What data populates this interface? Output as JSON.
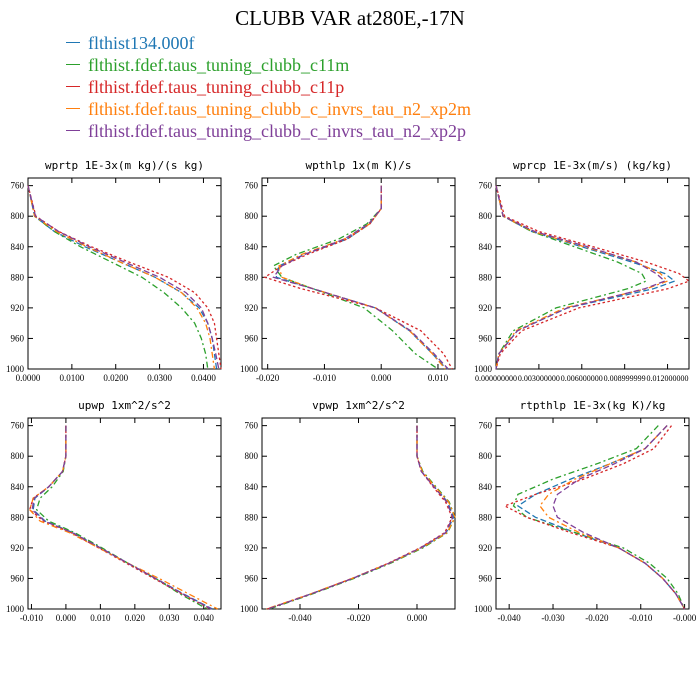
{
  "title": "CLUBB VAR at280E,-17N",
  "legend": [
    {
      "label": "flthist134.000f",
      "color": "#1f77b4"
    },
    {
      "label": "flthist.fdef.taus_tuning_clubb_c11m",
      "color": "#2ca02c"
    },
    {
      "label": "flthist.fdef.taus_tuning_clubb_c11p",
      "color": "#d62728"
    },
    {
      "label": "flthist.fdef.taus_tuning_clubb_c_invrs_tau_n2_xp2m",
      "color": "#ff7f0e"
    },
    {
      "label": "flthist.fdef.taus_tuning_clubb_c_invrs_tau_n2_xp2p",
      "color": "#7f3f98"
    }
  ],
  "chart_data": [
    {
      "type": "line",
      "title": "wprtp  1E-3x(m kg)/(s kg)",
      "xlim": [
        0,
        0.044
      ],
      "ylim": [
        750,
        1000
      ],
      "y_inverted": true,
      "xticks": [
        0,
        0.01,
        0.02,
        0.03,
        0.04
      ],
      "xtick_labels": [
        "0.0000",
        "0.0100",
        "0.0200",
        "0.0300",
        "0.0400"
      ],
      "yticks": [
        760,
        800,
        840,
        880,
        920,
        960,
        1000
      ],
      "series": [
        {
          "y": [
            760,
            800,
            820,
            840,
            860,
            880,
            900,
            920,
            940,
            960,
            980,
            1000
          ],
          "x": [
            0,
            0.0015,
            0.006,
            0.013,
            0.021,
            0.029,
            0.035,
            0.039,
            0.041,
            0.042,
            0.0425,
            0.043
          ]
        },
        {
          "y": [
            760,
            800,
            820,
            840,
            860,
            880,
            900,
            920,
            940,
            960,
            980,
            1000
          ],
          "x": [
            0,
            0.0015,
            0.006,
            0.012,
            0.019,
            0.026,
            0.031,
            0.035,
            0.038,
            0.0395,
            0.0405,
            0.041
          ]
        },
        {
          "y": [
            760,
            800,
            820,
            840,
            860,
            880,
            900,
            920,
            940,
            960,
            980,
            1000
          ],
          "x": [
            0,
            0.0018,
            0.007,
            0.0145,
            0.023,
            0.032,
            0.038,
            0.041,
            0.0425,
            0.043,
            0.0435,
            0.044
          ]
        },
        {
          "y": [
            760,
            800,
            820,
            840,
            860,
            880,
            900,
            920,
            940,
            960,
            980,
            1000
          ],
          "x": [
            0,
            0.0015,
            0.0065,
            0.0135,
            0.021,
            0.029,
            0.035,
            0.0385,
            0.0405,
            0.0415,
            0.042,
            0.0425
          ]
        },
        {
          "y": [
            760,
            800,
            820,
            840,
            860,
            880,
            900,
            920,
            940,
            960,
            980,
            1000
          ],
          "x": [
            0,
            0.0017,
            0.007,
            0.014,
            0.022,
            0.03,
            0.036,
            0.0395,
            0.041,
            0.042,
            0.0428,
            0.0435
          ]
        }
      ]
    },
    {
      "type": "line",
      "title": "wpthlp  1x(m K)/s",
      "xlim": [
        -0.021,
        0.013
      ],
      "ylim": [
        750,
        1000
      ],
      "y_inverted": true,
      "xticks": [
        -0.02,
        -0.01,
        0,
        0.01
      ],
      "xtick_labels": [
        "-0.020",
        "-0.010",
        "0.000",
        "0.010"
      ],
      "yticks": [
        760,
        800,
        840,
        880,
        920,
        960,
        1000
      ],
      "series": [
        {
          "y": [
            760,
            790,
            810,
            830,
            850,
            865,
            880,
            895,
            920,
            950,
            980,
            1000
          ],
          "x": [
            0,
            0,
            -0.002,
            -0.006,
            -0.0135,
            -0.018,
            -0.0185,
            -0.012,
            -0.001,
            0.005,
            0.009,
            0.0115
          ]
        },
        {
          "y": [
            760,
            790,
            810,
            830,
            850,
            865,
            880,
            895,
            920,
            950,
            980,
            1000
          ],
          "x": [
            0,
            0,
            -0.0025,
            -0.0075,
            -0.015,
            -0.019,
            -0.0175,
            -0.012,
            -0.003,
            0.002,
            0.006,
            0.01
          ]
        },
        {
          "y": [
            760,
            790,
            810,
            830,
            850,
            865,
            880,
            895,
            920,
            950,
            980,
            1000
          ],
          "x": [
            0,
            0,
            -0.002,
            -0.006,
            -0.013,
            -0.0175,
            -0.0205,
            -0.014,
            -0.001,
            0.007,
            0.011,
            0.0125
          ]
        },
        {
          "y": [
            760,
            790,
            810,
            830,
            850,
            865,
            880,
            895,
            920,
            950,
            980,
            1000
          ],
          "x": [
            0,
            0,
            -0.002,
            -0.0065,
            -0.014,
            -0.018,
            -0.0175,
            -0.012,
            -0.001,
            0.005,
            0.009,
            0.0113
          ]
        },
        {
          "y": [
            760,
            790,
            810,
            830,
            850,
            865,
            880,
            895,
            920,
            950,
            980,
            1000
          ],
          "x": [
            0,
            0,
            -0.0022,
            -0.0065,
            -0.0135,
            -0.0175,
            -0.019,
            -0.012,
            -0.001,
            0.0052,
            0.0093,
            0.0118
          ]
        }
      ]
    },
    {
      "type": "line",
      "title": "wprcp  1E-3x(m/s) (kg/kg)",
      "xlim": [
        0,
        0.0135
      ],
      "ylim": [
        750,
        1000
      ],
      "y_inverted": true,
      "xticks": [
        0,
        0.003,
        0.006,
        0.009,
        0.012
      ],
      "xtick_labels": [
        "0.000000000",
        "0.003000000",
        "0.006000000",
        "0.008999999",
        "0.012000000"
      ],
      "yticks": [
        760,
        800,
        840,
        880,
        920,
        960,
        1000
      ],
      "series": [
        {
          "y": [
            760,
            800,
            820,
            840,
            860,
            875,
            885,
            895,
            920,
            950,
            980,
            1000
          ],
          "x": [
            0,
            0.0005,
            0.0025,
            0.006,
            0.0095,
            0.0118,
            0.0125,
            0.011,
            0.005,
            0.0015,
            0.0002,
            0
          ]
        },
        {
          "y": [
            760,
            800,
            820,
            840,
            860,
            875,
            885,
            895,
            920,
            950,
            980,
            1000
          ],
          "x": [
            0,
            0.0005,
            0.0025,
            0.0055,
            0.0085,
            0.0102,
            0.0105,
            0.0092,
            0.0042,
            0.0012,
            0.0002,
            0
          ]
        },
        {
          "y": [
            760,
            800,
            820,
            840,
            860,
            875,
            885,
            895,
            920,
            950,
            980,
            1000
          ],
          "x": [
            0,
            0.0006,
            0.003,
            0.0068,
            0.0105,
            0.0128,
            0.0135,
            0.012,
            0.0058,
            0.0018,
            0.0003,
            0
          ]
        },
        {
          "y": [
            760,
            800,
            820,
            840,
            860,
            875,
            885,
            895,
            920,
            950,
            980,
            1000
          ],
          "x": [
            0,
            0.0005,
            0.0026,
            0.0062,
            0.0098,
            0.0115,
            0.012,
            0.0105,
            0.0048,
            0.0014,
            0.0002,
            0
          ]
        },
        {
          "y": [
            760,
            800,
            820,
            840,
            860,
            875,
            885,
            895,
            920,
            950,
            980,
            1000
          ],
          "x": [
            0,
            0.0005,
            0.0027,
            0.0064,
            0.0098,
            0.0112,
            0.0118,
            0.0104,
            0.005,
            0.0015,
            0.0002,
            0
          ]
        }
      ]
    },
    {
      "type": "line",
      "title": "upwp  1xm^2/s^2",
      "xlim": [
        -0.011,
        0.045
      ],
      "ylim": [
        750,
        1000
      ],
      "y_inverted": true,
      "xticks": [
        -0.01,
        0,
        0.01,
        0.02,
        0.03,
        0.04
      ],
      "xtick_labels": [
        "-0.010",
        "0.000",
        "0.010",
        "0.020",
        "0.030",
        "0.040"
      ],
      "yticks": [
        760,
        800,
        840,
        880,
        920,
        960,
        1000
      ],
      "series": [
        {
          "y": [
            760,
            800,
            820,
            840,
            855,
            870,
            885,
            900,
            920,
            940,
            960,
            980,
            1000
          ],
          "x": [
            0,
            0,
            -0.001,
            -0.005,
            -0.009,
            -0.0095,
            -0.006,
            0.002,
            0.01,
            0.018,
            0.026,
            0.034,
            0.0425
          ]
        },
        {
          "y": [
            760,
            800,
            820,
            840,
            855,
            870,
            885,
            900,
            920,
            940,
            960,
            980,
            1000
          ],
          "x": [
            0,
            0,
            -0.0008,
            -0.004,
            -0.0075,
            -0.0085,
            -0.005,
            0.0025,
            0.0105,
            0.018,
            0.026,
            0.033,
            0.041
          ]
        },
        {
          "y": [
            760,
            800,
            820,
            840,
            855,
            870,
            885,
            900,
            920,
            940,
            960,
            980,
            1000
          ],
          "x": [
            0,
            0,
            -0.001,
            -0.005,
            -0.0095,
            -0.0105,
            -0.0065,
            0.0015,
            0.0095,
            0.0175,
            0.0255,
            0.0335,
            0.042
          ]
        },
        {
          "y": [
            760,
            800,
            820,
            840,
            855,
            870,
            885,
            900,
            920,
            940,
            960,
            980,
            1000
          ],
          "x": [
            0,
            0,
            -0.001,
            -0.005,
            -0.0095,
            -0.0105,
            -0.0075,
            0.001,
            0.0095,
            0.018,
            0.027,
            0.0355,
            0.044
          ]
        },
        {
          "y": [
            760,
            800,
            820,
            840,
            855,
            870,
            885,
            900,
            920,
            940,
            960,
            980,
            1000
          ],
          "x": [
            0,
            0,
            -0.001,
            -0.005,
            -0.0092,
            -0.0098,
            -0.0062,
            0.0018,
            0.01,
            0.018,
            0.026,
            0.0338,
            0.0422
          ]
        }
      ]
    },
    {
      "type": "line",
      "title": "vpwp  1xm^2/s^2",
      "xlim": [
        -0.053,
        0.013
      ],
      "ylim": [
        750,
        1000
      ],
      "y_inverted": true,
      "xticks": [
        -0.04,
        -0.02,
        0
      ],
      "xtick_labels": [
        "-0.040",
        "-0.020",
        "0.000"
      ],
      "yticks": [
        760,
        800,
        840,
        880,
        920,
        960,
        1000
      ],
      "series": [
        {
          "y": [
            760,
            800,
            820,
            840,
            860,
            880,
            900,
            920,
            940,
            960,
            980,
            1000
          ],
          "x": [
            0,
            0,
            0.0015,
            0.006,
            0.0105,
            0.0125,
            0.01,
            0.0015,
            -0.0095,
            -0.022,
            -0.036,
            -0.051
          ]
        },
        {
          "y": [
            760,
            800,
            820,
            840,
            860,
            880,
            900,
            920,
            940,
            960,
            980,
            1000
          ],
          "x": [
            0,
            0,
            0.002,
            0.0065,
            0.011,
            0.013,
            0.0105,
            0.002,
            -0.009,
            -0.0215,
            -0.0355,
            -0.0505
          ]
        },
        {
          "y": [
            760,
            800,
            820,
            840,
            860,
            880,
            900,
            920,
            940,
            960,
            980,
            1000
          ],
          "x": [
            0,
            0,
            0.0015,
            0.0055,
            0.0098,
            0.012,
            0.0095,
            0.001,
            -0.0098,
            -0.0222,
            -0.036,
            -0.0512
          ]
        },
        {
          "y": [
            760,
            800,
            820,
            840,
            860,
            880,
            900,
            920,
            940,
            960,
            980,
            1000
          ],
          "x": [
            0,
            0,
            0.0018,
            0.0062,
            0.0108,
            0.013,
            0.0103,
            0.0015,
            -0.0095,
            -0.0222,
            -0.0362,
            -0.0515
          ]
        },
        {
          "y": [
            760,
            800,
            820,
            840,
            860,
            880,
            900,
            920,
            940,
            960,
            980,
            1000
          ],
          "x": [
            0,
            0,
            0.0015,
            0.0058,
            0.0102,
            0.0122,
            0.0098,
            0.0012,
            -0.0095,
            -0.022,
            -0.036,
            -0.051
          ]
        }
      ]
    },
    {
      "type": "line",
      "title": "rtpthlp  1E-3x(kg K)/kg",
      "xlim": [
        -0.043,
        0.001
      ],
      "ylim": [
        750,
        1000
      ],
      "y_inverted": true,
      "xticks": [
        -0.04,
        -0.03,
        -0.02,
        -0.01,
        0
      ],
      "xtick_labels": [
        "-0.040",
        "-0.030",
        "-0.020",
        "-0.010",
        "-0.000"
      ],
      "yticks": [
        760,
        800,
        840,
        880,
        920,
        960,
        1000
      ],
      "series": [
        {
          "y": [
            760,
            790,
            810,
            830,
            850,
            865,
            880,
            900,
            920,
            940,
            960,
            980,
            1000
          ],
          "x": [
            -0.004,
            -0.009,
            -0.017,
            -0.026,
            -0.034,
            -0.038,
            -0.034,
            -0.025,
            -0.015,
            -0.009,
            -0.005,
            -0.002,
            0
          ]
        },
        {
          "y": [
            760,
            790,
            810,
            830,
            850,
            865,
            880,
            900,
            920,
            940,
            960,
            980,
            1000
          ],
          "x": [
            -0.006,
            -0.011,
            -0.02,
            -0.03,
            -0.038,
            -0.039,
            -0.036,
            -0.025,
            -0.014,
            -0.008,
            -0.004,
            -0.0015,
            0
          ]
        },
        {
          "y": [
            760,
            790,
            810,
            830,
            850,
            865,
            880,
            900,
            920,
            940,
            960,
            980,
            1000
          ],
          "x": [
            -0.003,
            -0.007,
            -0.014,
            -0.023,
            -0.034,
            -0.041,
            -0.036,
            -0.026,
            -0.015,
            -0.009,
            -0.005,
            -0.002,
            0
          ]
        },
        {
          "y": [
            760,
            790,
            810,
            830,
            850,
            865,
            880,
            900,
            920,
            940,
            960,
            980,
            1000
          ],
          "x": [
            -0.004,
            -0.009,
            -0.017,
            -0.025,
            -0.031,
            -0.033,
            -0.031,
            -0.024,
            -0.015,
            -0.009,
            -0.005,
            -0.002,
            0
          ]
        },
        {
          "y": [
            760,
            790,
            810,
            830,
            850,
            865,
            880,
            900,
            920,
            940,
            960,
            980,
            1000
          ],
          "x": [
            -0.004,
            -0.009,
            -0.016,
            -0.024,
            -0.029,
            -0.03,
            -0.029,
            -0.023,
            -0.015,
            -0.009,
            -0.005,
            -0.002,
            0
          ]
        }
      ]
    }
  ]
}
